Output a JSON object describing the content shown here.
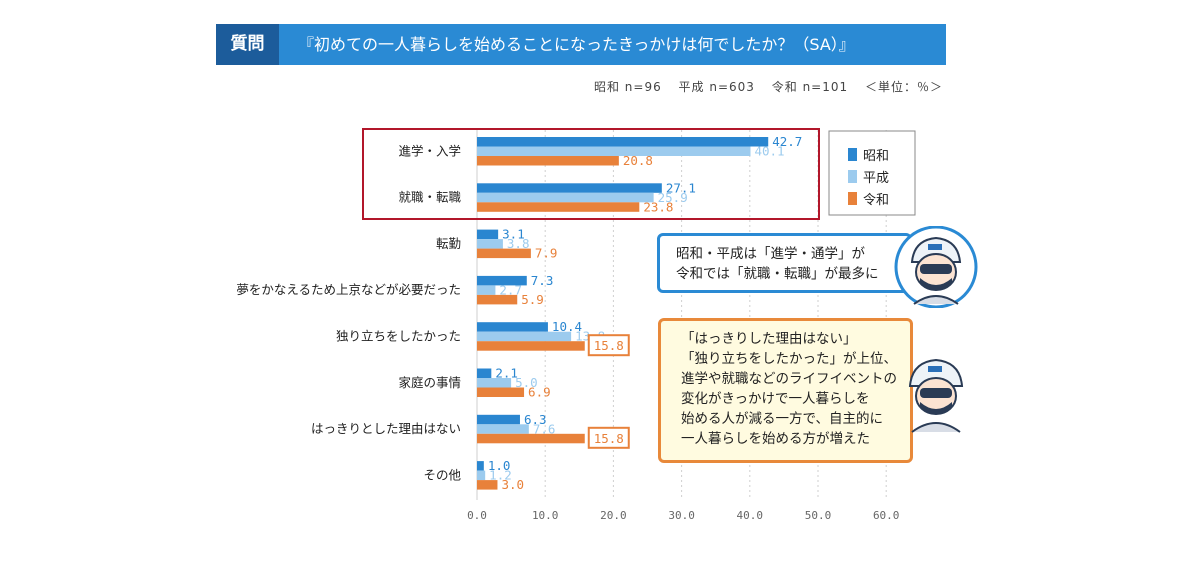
{
  "header": {
    "tag": "質問",
    "title": "『初めての一人暮らしを始めることになったきっかけは何でしたか？（SA）』"
  },
  "meta": {
    "samples": [
      "昭和 n=96",
      "平成 n=603",
      "令和 n=101"
    ],
    "unit": "＜単位：％＞"
  },
  "callouts": {
    "blue": [
      "昭和・平成は「進学・通学」が",
      "令和では「就職・転職」が最多に"
    ],
    "orange": [
      "「はっきりした理由はない」",
      "「独り立ちをしたかった」が上位、",
      "進学や就職などのライフイベントの",
      "変化がきっかけで一人暮らしを",
      "始める人が減る一方で、自主的に",
      "一人暮らしを始める方が増えた"
    ]
  },
  "colors": {
    "showa": "#2a86d0",
    "heisei": "#9ccbee",
    "reiwa": "#e8813a",
    "highlight": "#b2162a"
  },
  "chart_data": {
    "type": "bar",
    "orientation": "horizontal",
    "categories": [
      "進学・入学",
      "就職・転職",
      "転勤",
      "夢をかなえるため上京などが必要だった",
      "独り立ちをしたかった",
      "家庭の事情",
      "はっきりとした理由はない",
      "その他"
    ],
    "series": [
      {
        "name": "昭和",
        "values": [
          42.7,
          27.1,
          3.1,
          7.3,
          10.4,
          2.1,
          6.3,
          1.0
        ]
      },
      {
        "name": "平成",
        "values": [
          40.1,
          25.9,
          3.8,
          2.7,
          13.8,
          5.0,
          7.6,
          1.2
        ]
      },
      {
        "name": "令和",
        "values": [
          20.8,
          23.8,
          7.9,
          5.9,
          15.8,
          6.9,
          15.8,
          3.0
        ]
      }
    ],
    "xlim": [
      0,
      60
    ],
    "xticks": [
      "0.0",
      "10.0",
      "20.0",
      "30.0",
      "40.0",
      "50.0",
      "60.0"
    ],
    "legend": "right",
    "highlighted_categories": [
      "進学・入学",
      "就職・転職"
    ],
    "boxed_values": [
      "15.8"
    ]
  }
}
